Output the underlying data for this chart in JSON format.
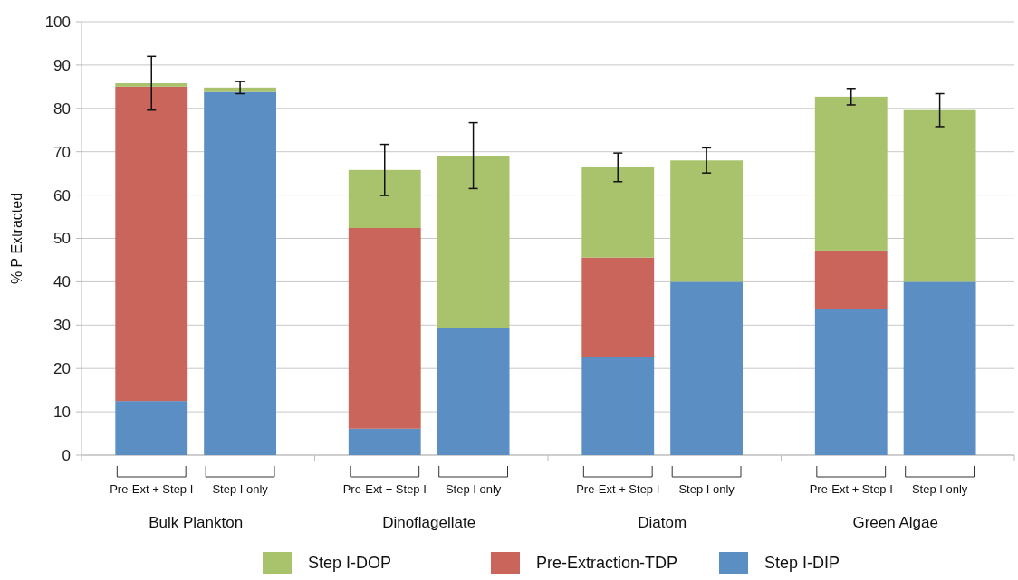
{
  "chart_data": {
    "type": "bar",
    "stacked": true,
    "ylabel": "% P Extracted",
    "categories": [
      "Pre-Ext + Step I",
      "Step I only",
      "Pre-Ext + Step I",
      "Step I only",
      "Pre-Ext + Step I",
      "Step I only",
      "Pre-Ext + Step I",
      "Step I only"
    ],
    "annotations": [
      "Bulk Plankton",
      "Dinoflagellate",
      "Diatom",
      "Green Algae"
    ],
    "series": [
      {
        "name": "Step I-DIP",
        "color": "#5b8fc4",
        "values": [
          12.5,
          83.8,
          6.1,
          29.4,
          22.6,
          40.0,
          33.8,
          40.0
        ]
      },
      {
        "name": "Pre-Extraction-TDP",
        "color": "#c9655a",
        "values": [
          72.5,
          0,
          46.3,
          0,
          23.0,
          0,
          13.4,
          0
        ]
      },
      {
        "name": "Step I-DOP",
        "color": "#a9c26c",
        "values": [
          0.8,
          1.0,
          13.4,
          39.7,
          20.8,
          28.0,
          35.5,
          39.6
        ],
        "errors": [
          6.2,
          1.4,
          5.9,
          7.6,
          3.3,
          2.9,
          1.9,
          3.8
        ]
      }
    ],
    "ylim": [
      0,
      100
    ],
    "yticks": [
      0,
      10,
      20,
      30,
      40,
      50,
      60,
      70,
      80,
      90,
      100
    ],
    "grid": "y",
    "legend": "bottom"
  }
}
